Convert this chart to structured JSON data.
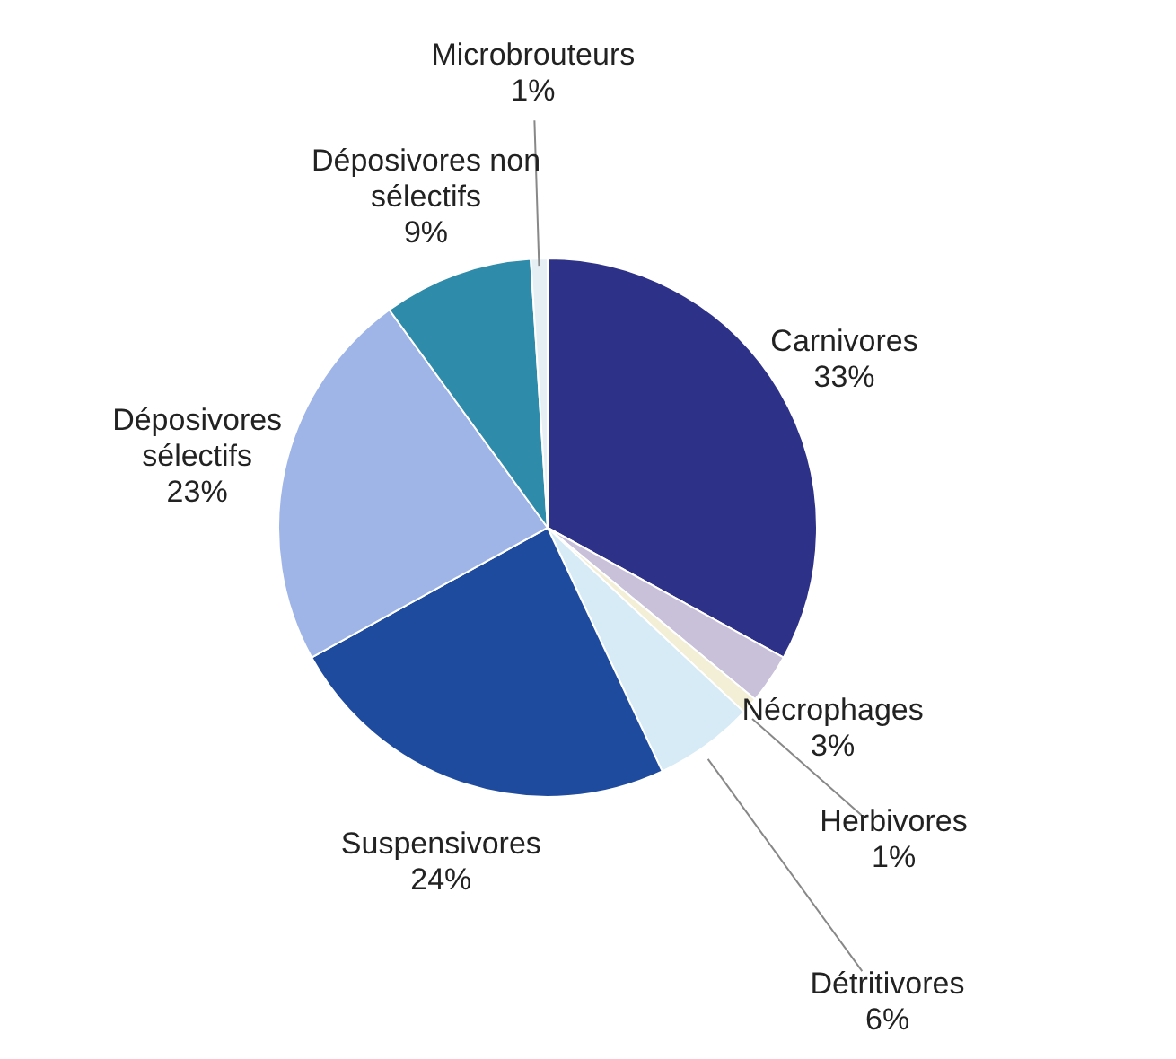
{
  "chart_data": {
    "type": "pie",
    "categories": [
      "Carnivores",
      "Nécrophages",
      "Herbivores",
      "Détritivores",
      "Suspensivores",
      "Déposivores sélectifs",
      "Déposivores non sélectifs",
      "Microbrouteurs"
    ],
    "values": [
      33,
      3,
      1,
      6,
      24,
      23,
      9,
      1
    ],
    "value_labels": [
      "33%",
      "3%",
      "1%",
      "6%",
      "24%",
      "23%",
      "9%",
      "1%"
    ],
    "colors": [
      "#2e3188",
      "#c9c1da",
      "#f3efd6",
      "#d6ebf5",
      "#1f4b9f",
      "#9fb5e8",
      "#2e8ba9",
      "#e6eff4"
    ],
    "legend": false
  }
}
